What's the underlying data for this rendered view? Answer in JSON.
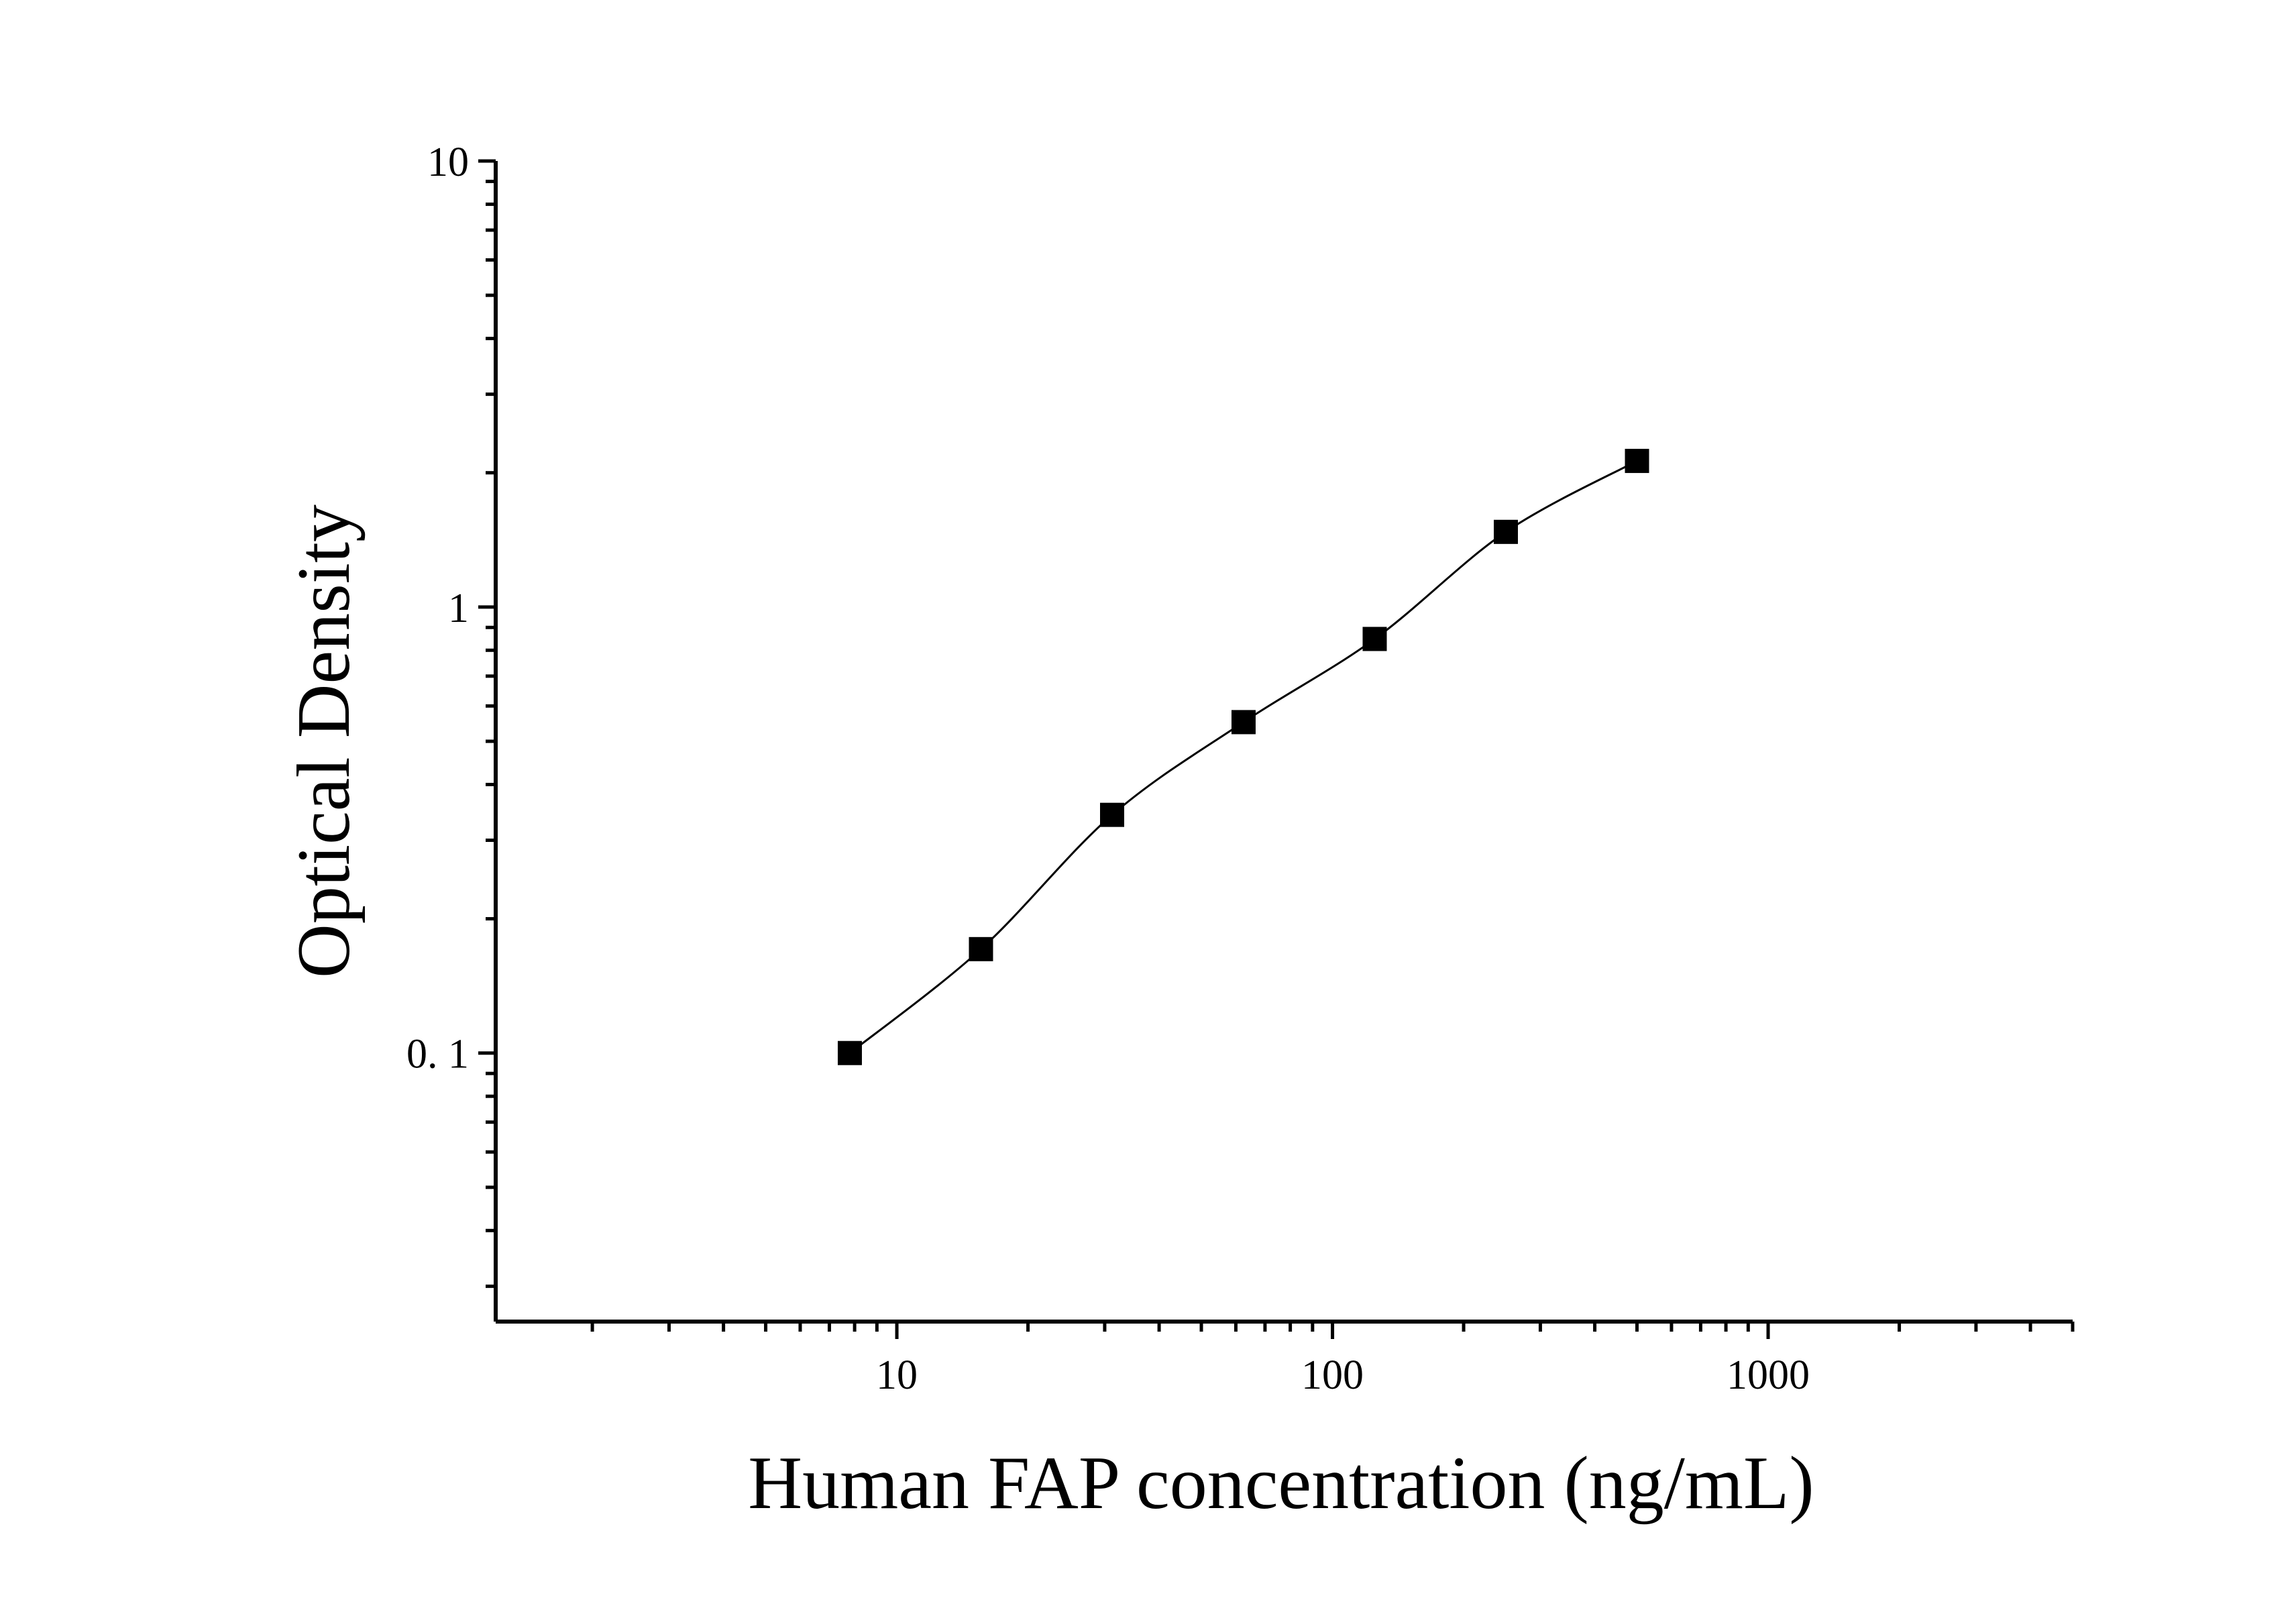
{
  "chart_data": {
    "type": "scatter",
    "title": "",
    "xlabel": "Human FAP concentration (ng/mL)",
    "ylabel": "Optical Density",
    "x_scale": "log",
    "y_scale": "log",
    "xlim": [
      1.2,
      5000
    ],
    "ylim": [
      0.025,
      10
    ],
    "x_ticks": [
      {
        "value": 10,
        "label": "10"
      },
      {
        "value": 100,
        "label": "100"
      },
      {
        "value": 1000,
        "label": "1000"
      }
    ],
    "y_ticks": [
      {
        "value": 0.1,
        "label": "0. 1"
      },
      {
        "value": 1,
        "label": "1"
      },
      {
        "value": 10,
        "label": "10"
      }
    ],
    "grid": false,
    "legend": "none",
    "series": [
      {
        "color": "#000000",
        "marker": "square",
        "line": "smooth",
        "x": [
          7.8,
          15.6,
          31.2,
          62.5,
          125,
          250,
          500
        ],
        "y": [
          0.1,
          0.171,
          0.342,
          0.552,
          0.848,
          1.474,
          2.126
        ]
      }
    ]
  }
}
